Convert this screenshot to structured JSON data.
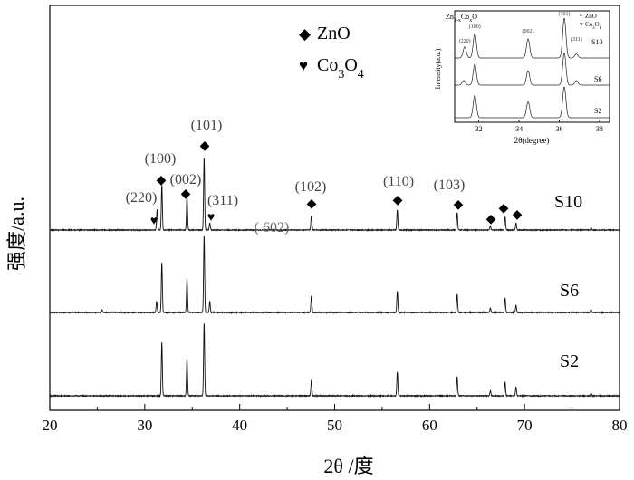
{
  "chart_data": {
    "type": "line",
    "xlabel": "2θ /度",
    "ylabel": "强度/a.u.",
    "xlim": [
      20,
      80
    ],
    "x_ticks": [
      20,
      30,
      40,
      50,
      60,
      70,
      80
    ],
    "grid": false,
    "legend_placement": "top-center",
    "legend": [
      {
        "symbol": "◆",
        "label": "ZnO"
      },
      {
        "symbol": "♥",
        "label": "Co3O4"
      }
    ],
    "series": [
      {
        "name": "S10",
        "peaks": [
          {
            "x": 31.3,
            "h": 0.28
          },
          {
            "x": 31.8,
            "h": 0.62
          },
          {
            "x": 34.45,
            "h": 0.48
          },
          {
            "x": 36.25,
            "h": 1.0
          },
          {
            "x": 36.85,
            "h": 0.1
          },
          {
            "x": 47.55,
            "h": 0.2
          },
          {
            "x": 56.6,
            "h": 0.28
          },
          {
            "x": 62.9,
            "h": 0.24
          },
          {
            "x": 66.4,
            "h": 0.06
          },
          {
            "x": 67.95,
            "h": 0.18
          },
          {
            "x": 69.1,
            "h": 0.1
          },
          {
            "x": 77.0,
            "h": 0.03
          }
        ]
      },
      {
        "name": "S6",
        "peaks": [
          {
            "x": 25.5,
            "h": 0.03
          },
          {
            "x": 31.25,
            "h": 0.12
          },
          {
            "x": 31.8,
            "h": 0.55
          },
          {
            "x": 34.45,
            "h": 0.38
          },
          {
            "x": 36.25,
            "h": 0.85
          },
          {
            "x": 36.85,
            "h": 0.12
          },
          {
            "x": 47.55,
            "h": 0.18
          },
          {
            "x": 56.6,
            "h": 0.24
          },
          {
            "x": 62.9,
            "h": 0.2
          },
          {
            "x": 66.4,
            "h": 0.05
          },
          {
            "x": 67.95,
            "h": 0.16
          },
          {
            "x": 69.1,
            "h": 0.08
          },
          {
            "x": 77.0,
            "h": 0.03
          }
        ]
      },
      {
        "name": "S2",
        "peaks": [
          {
            "x": 31.8,
            "h": 0.62
          },
          {
            "x": 34.45,
            "h": 0.44
          },
          {
            "x": 36.25,
            "h": 0.85
          },
          {
            "x": 47.55,
            "h": 0.18
          },
          {
            "x": 56.6,
            "h": 0.28
          },
          {
            "x": 62.9,
            "h": 0.22
          },
          {
            "x": 66.4,
            "h": 0.06
          },
          {
            "x": 67.95,
            "h": 0.16
          },
          {
            "x": 69.1,
            "h": 0.1
          },
          {
            "x": 77.0,
            "h": 0.03
          }
        ]
      }
    ],
    "annotations": [
      {
        "text": "(220)",
        "x": 31.3,
        "marker": "♥"
      },
      {
        "text": "(100)",
        "x": 31.8,
        "marker": "◆"
      },
      {
        "text": "(002)",
        "x": 34.45,
        "marker": "◆"
      },
      {
        "text": "(101)",
        "x": 36.25,
        "marker": "◆"
      },
      {
        "text": "(311)",
        "x": 36.85,
        "marker": "♥"
      },
      {
        "text": "( 602)",
        "x": 45.0,
        "marker": ""
      },
      {
        "text": "(102)",
        "x": 47.55,
        "marker": "◆"
      },
      {
        "text": "(110)",
        "x": 56.6,
        "marker": "◆"
      },
      {
        "text": "(103)",
        "x": 62.9,
        "marker": "◆"
      },
      {
        "text": "",
        "x": 66.4,
        "marker": "◆"
      },
      {
        "text": "",
        "x": 67.95,
        "marker": "◆"
      },
      {
        "text": "",
        "x": 69.1,
        "marker": "◆"
      }
    ],
    "inset": {
      "type": "line",
      "title": "Zn1-xCoxO",
      "xlabel": "2θ(degree)",
      "ylabel": "Intensity(a.u.)",
      "xlim": [
        30.8,
        38.5
      ],
      "x_ticks": [
        32,
        34,
        36,
        38
      ],
      "legend": [
        {
          "symbol": "•",
          "label": "ZnO"
        },
        {
          "symbol": "▾",
          "label": "Co3O4"
        }
      ],
      "annotations": [
        {
          "text": "(220)",
          "x": 31.3
        },
        {
          "text": "(100)",
          "x": 31.8
        },
        {
          "text": "(002)",
          "x": 34.45
        },
        {
          "text": "(101)",
          "x": 36.25
        },
        {
          "text": "(311)",
          "x": 36.85
        }
      ],
      "series_labels": [
        "S10",
        "S6",
        "S2"
      ]
    }
  }
}
